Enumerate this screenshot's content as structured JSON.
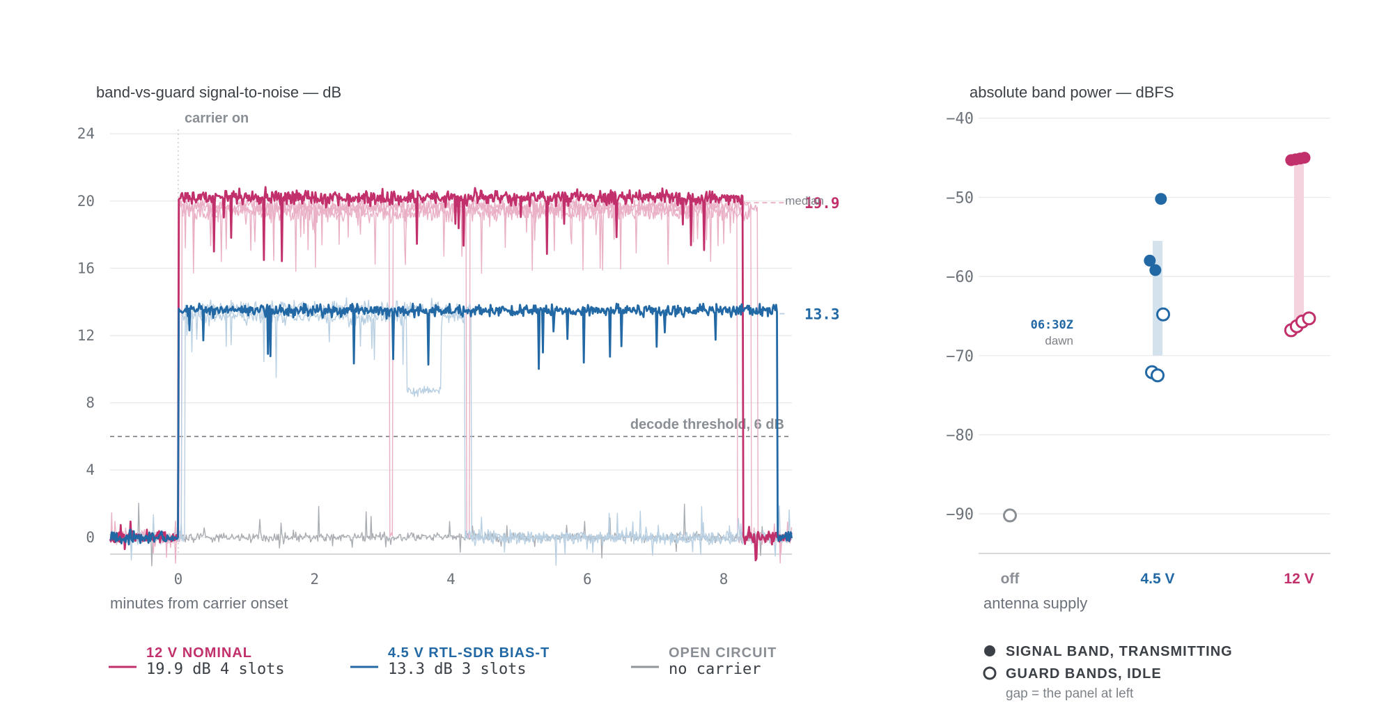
{
  "colors": {
    "v12": "#c2306b",
    "v12_light": "#eab0c6",
    "v45": "#2168a4",
    "v45_light": "#b9cfe2",
    "open": "#a9adb2",
    "grid": "#e6e8ea",
    "axis": "#c9ccd0",
    "threshold": "#8a8f95"
  },
  "left": {
    "title": "band-vs-guard signal-to-noise — dB",
    "carrier_annotation": "carrier on",
    "threshold_annotation": "decode threshold, 6 dB",
    "median_label": "median",
    "xlabel": "minutes from carrier onset",
    "legend": [
      {
        "title": "12 V NOMINAL",
        "sub": "19.9 dB 4 slots",
        "color": "#c2306b"
      },
      {
        "title": "4.5 V RTL-SDR BIAS-T",
        "sub": "13.3 dB 3 slots",
        "color": "#2168a4"
      },
      {
        "title": "OPEN CIRCUIT",
        "sub": "no carrier",
        "color": "#8f959b"
      }
    ]
  },
  "right": {
    "title": "absolute band power — dBFS",
    "xlabel": "antenna supply",
    "annotation_time": "06:30Z",
    "annotation_sub": "dawn",
    "legend_signal": "SIGNAL BAND, TRANSMITTING",
    "legend_guard": "GUARD BANDS, IDLE",
    "legend_note": "gap = the panel at left"
  },
  "chart_data": [
    {
      "type": "line",
      "title": "band-vs-guard signal-to-noise — dB",
      "xlabel": "minutes from carrier onset",
      "ylabel": "",
      "xlim": [
        -1,
        9
      ],
      "ylim": [
        -1,
        25
      ],
      "x_ticks": [
        0,
        2,
        4,
        6,
        8
      ],
      "y_ticks": [
        0,
        4,
        8,
        12,
        16,
        20,
        24
      ],
      "grid": true,
      "carrier_on_x": 0,
      "threshold": 6,
      "series": [
        {
          "name": "12 V NOMINAL",
          "group": "12V",
          "emphasis": "bold",
          "pre_level": 0,
          "level": 20.2,
          "start": 0,
          "end": 8.28,
          "noise": 0.45,
          "median": 19.9,
          "median_label": "19.9",
          "slots": 4
        },
        {
          "name": "",
          "group": "12V",
          "emphasis": "light",
          "pre_level": 0,
          "level": 19.7,
          "start": 0.02,
          "end": 8.5,
          "noise": 0.45,
          "dropout": [
            3.1,
            3.15
          ]
        },
        {
          "name": "",
          "group": "12V",
          "emphasis": "light",
          "pre_level": 0,
          "level": 19.3,
          "start": 0.05,
          "end": 8.4,
          "noise": 0.55
        },
        {
          "name": "",
          "group": "12V",
          "emphasis": "light",
          "pre_level": 0,
          "level": 19.6,
          "start": 0.0,
          "end": 8.2,
          "noise": 0.5,
          "dropout": [
            4.23,
            4.27
          ]
        },
        {
          "name": "4.5 V RTL-SDR BIAS-T",
          "group": "4.5V",
          "emphasis": "bold",
          "pre_level": 0,
          "level": 13.5,
          "start": 0,
          "end": 8.78,
          "noise": 0.35,
          "median": 13.3,
          "median_label": "13.3",
          "slots": 3
        },
        {
          "name": "",
          "group": "4.5V",
          "emphasis": "light",
          "pre_level": 0,
          "level": 13.1,
          "start": 0.05,
          "end": 4.2,
          "noise": 0.45,
          "plateau": [
            3.35,
            3.85,
            8.7
          ]
        },
        {
          "name": "",
          "group": "4.5V",
          "emphasis": "light",
          "pre_level": 0,
          "level": 13.6,
          "start": 0.1,
          "end": 4.3,
          "noise": 0.5
        },
        {
          "name": "OPEN CIRCUIT",
          "group": "open",
          "emphasis": "normal",
          "pre_level": 0,
          "level": 0,
          "start": 0,
          "end": 9,
          "noise": 0.25
        }
      ]
    },
    {
      "type": "scatter",
      "title": "absolute band power — dBFS",
      "xlabel": "antenna supply",
      "categories": [
        "off",
        "4.5 V",
        "12 V"
      ],
      "ylim": [
        -95,
        -38
      ],
      "y_ticks": [
        -40,
        -50,
        -60,
        -70,
        -80,
        -90
      ],
      "grid": true,
      "series": [
        {
          "name": "SIGNAL BAND, TRANSMITTING",
          "marker": "filled",
          "points": [
            {
              "cat": "4.5 V",
              "dx": 0.03,
              "y": -50.2
            },
            {
              "cat": "4.5 V",
              "dx": -0.07,
              "y": -58.0
            },
            {
              "cat": "4.5 V",
              "dx": -0.02,
              "y": -59.2
            },
            {
              "cat": "12 V",
              "dx": -0.07,
              "y": -45.3
            },
            {
              "cat": "12 V",
              "dx": -0.03,
              "y": -45.2
            },
            {
              "cat": "12 V",
              "dx": 0.01,
              "y": -45.1
            },
            {
              "cat": "12 V",
              "dx": 0.05,
              "y": -45.0
            }
          ]
        },
        {
          "name": "GUARD BANDS, IDLE",
          "marker": "hollow",
          "points": [
            {
              "cat": "off",
              "dx": 0.0,
              "y": -90.2
            },
            {
              "cat": "4.5 V",
              "dx": 0.05,
              "y": -64.8
            },
            {
              "cat": "4.5 V",
              "dx": -0.05,
              "y": -72.1
            },
            {
              "cat": "4.5 V",
              "dx": 0.0,
              "y": -72.5
            },
            {
              "cat": "12 V",
              "dx": -0.07,
              "y": -66.8
            },
            {
              "cat": "12 V",
              "dx": -0.02,
              "y": -66.3
            },
            {
              "cat": "12 V",
              "dx": 0.03,
              "y": -65.7
            },
            {
              "cat": "12 V",
              "dx": 0.09,
              "y": -65.3
            }
          ]
        }
      ],
      "gap_bars": [
        {
          "cat": "4.5 V",
          "from": -55.5,
          "to": -70.0
        },
        {
          "cat": "12 V",
          "from": -45.2,
          "to": -66.0
        }
      ]
    }
  ]
}
